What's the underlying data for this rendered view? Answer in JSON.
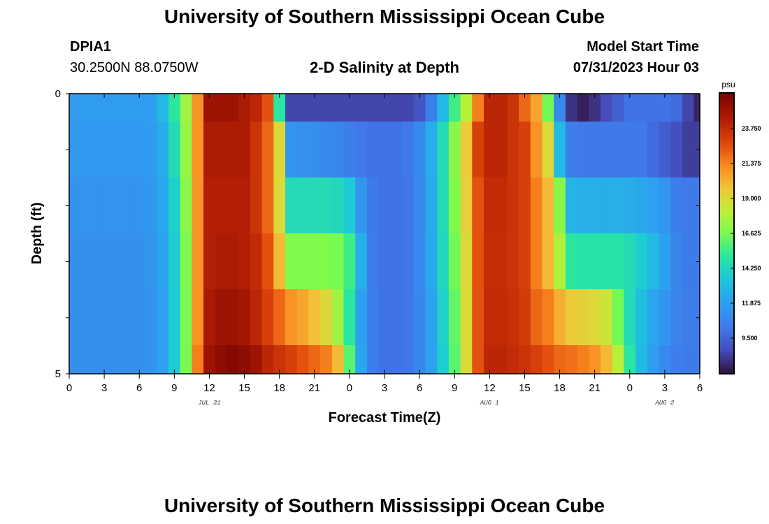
{
  "header": {
    "title": "University of Southern Mississippi Ocean Cube",
    "station_id": "DPIA1",
    "station_coords": "30.2500N  88.0750W",
    "chart_title": "2-D Salinity at Depth",
    "model_start_label": "Model Start Time",
    "model_start_value": "07/31/2023 Hour 03"
  },
  "footer": {
    "title": "University of Southern Mississippi Ocean Cube"
  },
  "chart_data": {
    "type": "heatmap",
    "title": "2-D Salinity at Depth",
    "xlabel": "Forecast Time(Z)",
    "ylabel": "Depth (ft)",
    "x_tick_labels": [
      "0",
      "3",
      "6",
      "9",
      "12",
      "15",
      "18",
      "21",
      "0",
      "3",
      "6",
      "9",
      "12",
      "15",
      "18",
      "21",
      "0",
      "3",
      "6"
    ],
    "date_labels": [
      {
        "label": "JUL 31",
        "at_tick": 4
      },
      {
        "label": "AUG 1",
        "at_tick": 12
      },
      {
        "label": "AUG 2",
        "at_tick": 17
      }
    ],
    "y_tick_labels": [
      "0",
      "5"
    ],
    "ylim": [
      0,
      5
    ],
    "colorbar": {
      "unit": "psu",
      "range": [
        7.125,
        26.125
      ],
      "tick_labels": [
        "23.750",
        "21.375",
        "19.000",
        "16.625",
        "14.250",
        "11.875",
        "9.500"
      ],
      "tick_values": [
        23.75,
        21.375,
        19.0,
        16.625,
        14.25,
        11.875,
        9.5
      ]
    },
    "hours": [
      0,
      1,
      2,
      3,
      4,
      5,
      6,
      7,
      8,
      9,
      10,
      11,
      12,
      13,
      14,
      15,
      16,
      17,
      18,
      19,
      20,
      21,
      22,
      23,
      24,
      25,
      26,
      27,
      28,
      29,
      30,
      31,
      32,
      33,
      34,
      35,
      36,
      37,
      38,
      39,
      40,
      41,
      42,
      43,
      44,
      45,
      46,
      47,
      48,
      49,
      50,
      51,
      52,
      53,
      54
    ],
    "depth_layers_ft": [
      "0.0-0.5",
      "0.5-1.5",
      "1.5-2.5",
      "2.5-3.5",
      "3.5-4.5",
      "4.5-5.0"
    ],
    "salinity_psu": [
      [
        11.8,
        11.8,
        11.8,
        11.8,
        11.8,
        11.8,
        11.8,
        12,
        13,
        15,
        17.5,
        21,
        25,
        25,
        25,
        24.5,
        24,
        22.5,
        15,
        8.5,
        8.5,
        8.5,
        8.5,
        8.5,
        8.5,
        8.5,
        8.5,
        8.5,
        8.5,
        8.5,
        9,
        10.5,
        13,
        15.5,
        18,
        21.5,
        24,
        24,
        23.5,
        22,
        20.5,
        16.5,
        11,
        8,
        7.5,
        8,
        8.7,
        9.4,
        10,
        10,
        10,
        10,
        9.8,
        8.5,
        7.6
      ],
      [
        11.6,
        11.6,
        11.6,
        11.6,
        11.6,
        11.6,
        11.6,
        11.8,
        12.5,
        14.5,
        17.3,
        21,
        24.5,
        24.5,
        24.5,
        24.5,
        23.5,
        22,
        19,
        11.5,
        11.3,
        11.2,
        11,
        10.8,
        10.5,
        10.2,
        10,
        10,
        10,
        10.2,
        11,
        12.5,
        14.5,
        17,
        19.5,
        23,
        24,
        24,
        23.5,
        23,
        21,
        19,
        13,
        10.5,
        10.2,
        10.2,
        10.2,
        10.2,
        10.2,
        10.2,
        9.8,
        9.3,
        8.8,
        8.3,
        8.3
      ],
      [
        11.4,
        11.4,
        11.4,
        11.4,
        11.4,
        11.4,
        11.4,
        11.6,
        12.3,
        14,
        17,
        21,
        24.3,
        24.3,
        24.3,
        24.3,
        23.5,
        22,
        19,
        14.5,
        14.5,
        14.5,
        14.5,
        14.3,
        13.7,
        11.5,
        10.3,
        10,
        10,
        10.1,
        11,
        12.4,
        14.5,
        16.8,
        19.3,
        22.5,
        23.8,
        23.8,
        23.5,
        23,
        21.5,
        20,
        17,
        12.8,
        12.6,
        12.6,
        12.6,
        12.6,
        12.5,
        12.3,
        12,
        11.5,
        10.5,
        10.2,
        10.2
      ],
      [
        11.2,
        11.2,
        11.2,
        11.2,
        11.2,
        11.2,
        11.2,
        11.5,
        12.1,
        13.8,
        16.8,
        21,
        24.3,
        24.5,
        24.5,
        24.3,
        23.8,
        22.5,
        20,
        16.8,
        16.8,
        16.8,
        16.8,
        16.6,
        15.5,
        12.5,
        10.4,
        10,
        10,
        10.1,
        11,
        12.3,
        14.3,
        16.5,
        19,
        22.5,
        23.7,
        23.7,
        23.5,
        23,
        21.5,
        20,
        17.8,
        15,
        14.8,
        14.8,
        14.8,
        14.8,
        14.5,
        13.8,
        13,
        12,
        10.9,
        10.3,
        10.3
      ],
      [
        11.2,
        11.2,
        11.2,
        11.2,
        11.2,
        11.2,
        11.2,
        11.4,
        12,
        13.7,
        16.7,
        21,
        24.6,
        25,
        25,
        24.8,
        24,
        23,
        22,
        21,
        20.5,
        19.8,
        19,
        17.5,
        15,
        12,
        10.5,
        10,
        10,
        10.1,
        10.9,
        12.1,
        14,
        16.2,
        18.9,
        22.5,
        23.8,
        23.8,
        23.6,
        23.2,
        22,
        21.5,
        20.3,
        19.5,
        19.3,
        19,
        18.5,
        16.5,
        14.5,
        13.2,
        12.2,
        11.5,
        10.7,
        10.4,
        10.3
      ],
      [
        11.2,
        11.2,
        11.2,
        11.2,
        11.2,
        11.2,
        11.2,
        11.4,
        12,
        13.7,
        16.7,
        21.5,
        25,
        25.5,
        25.8,
        25.5,
        25,
        24,
        23.5,
        23,
        22.5,
        22,
        21.5,
        20,
        16,
        12.2,
        10.5,
        10,
        10,
        10.1,
        10.9,
        12,
        13.8,
        16,
        18.9,
        22.5,
        24,
        24,
        23.8,
        23.5,
        23,
        22.5,
        22,
        21.8,
        21.5,
        21,
        20,
        18,
        15,
        13,
        11.8,
        11,
        10.5,
        10.3,
        10.3
      ]
    ]
  }
}
